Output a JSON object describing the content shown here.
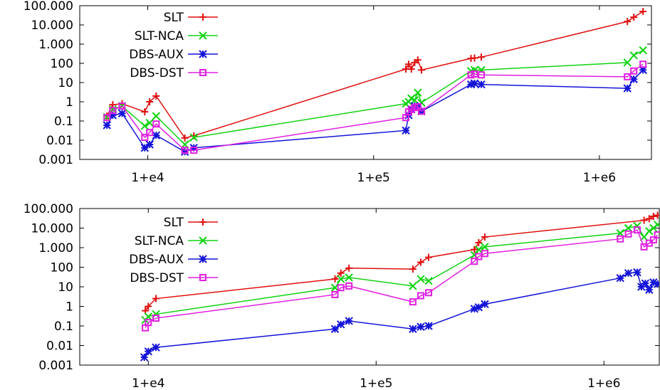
{
  "chart_data": [
    {
      "type": "line",
      "xscale": "log",
      "yscale": "log",
      "xlim": [
        5000,
        1700000
      ],
      "ylim": [
        0.001,
        100000
      ],
      "x_ticks": [
        {
          "value": 10000,
          "label": "1+e4"
        },
        {
          "value": 100000,
          "label": "1+e5"
        },
        {
          "value": 1000000,
          "label": "1+e6"
        }
      ],
      "y_ticks": [
        {
          "value": 100000,
          "label": "100.000"
        },
        {
          "value": 10000,
          "label": "10.000"
        },
        {
          "value": 1000,
          "label": "1.000"
        },
        {
          "value": 100,
          "label": "100"
        },
        {
          "value": 10,
          "label": "10"
        },
        {
          "value": 1,
          "label": "1"
        },
        {
          "value": 0.1,
          "label": "0.1"
        },
        {
          "value": 0.01,
          "label": "0.01"
        },
        {
          "value": 0.001,
          "label": "0.001"
        }
      ],
      "legend_position": "top-left",
      "grid": false,
      "series": [
        {
          "name": "SLT",
          "color": "#e01010",
          "marker": "plus",
          "x": [
            6600,
            7000,
            7700,
            9700,
            10200,
            10900,
            14600,
            16000,
            139000,
            143000,
            147000,
            152000,
            157000,
            163000,
            270000,
            280000,
            300000,
            1330000,
            1420000,
            1560000
          ],
          "y": [
            0.18,
            0.7,
            0.8,
            0.3,
            1.0,
            2.0,
            0.013,
            0.017,
            50,
            90,
            50,
            110,
            150,
            45,
            180,
            190,
            210,
            15000,
            25000,
            50000
          ]
        },
        {
          "name": "SLT-NCA",
          "color": "#12d312",
          "marker": "x",
          "x": [
            6600,
            7000,
            7700,
            9700,
            10200,
            10900,
            14600,
            16000,
            139000,
            143000,
            147000,
            152000,
            157000,
            163000,
            270000,
            280000,
            300000,
            1330000,
            1420000,
            1560000
          ],
          "y": [
            0.16,
            0.4,
            0.6,
            0.055,
            0.08,
            0.18,
            0.006,
            0.014,
            0.8,
            1.0,
            1.5,
            1.2,
            3.0,
            0.9,
            40,
            45,
            45,
            110,
            260,
            480
          ]
        },
        {
          "name": "DBS-AUX",
          "color": "#1414d8",
          "marker": "star",
          "x": [
            6600,
            7000,
            7700,
            9700,
            10200,
            10900,
            14600,
            16000,
            139000,
            143000,
            147000,
            152000,
            157000,
            163000,
            270000,
            280000,
            300000,
            1330000,
            1420000,
            1560000
          ],
          "y": [
            0.06,
            0.2,
            0.25,
            0.004,
            0.006,
            0.018,
            0.0025,
            0.004,
            0.032,
            0.2,
            0.4,
            0.6,
            0.55,
            0.32,
            8,
            9,
            8,
            5,
            15,
            45
          ]
        },
        {
          "name": "DBS-DST",
          "color": "#e020e0",
          "marker": "square",
          "x": [
            6600,
            7000,
            7700,
            9700,
            10200,
            10900,
            14600,
            16000,
            139000,
            143000,
            147000,
            152000,
            157000,
            163000,
            270000,
            280000,
            300000,
            1330000,
            1420000,
            1560000
          ],
          "y": [
            0.15,
            0.35,
            0.6,
            0.014,
            0.025,
            0.07,
            0.003,
            0.003,
            0.15,
            0.3,
            0.4,
            0.5,
            0.55,
            0.32,
            25,
            28,
            25,
            20,
            40,
            90
          ]
        }
      ]
    },
    {
      "type": "line",
      "xscale": "log",
      "yscale": "log",
      "xlim": [
        5000,
        1750000
      ],
      "ylim": [
        0.001,
        100000
      ],
      "x_ticks": [
        {
          "value": 10000,
          "label": "1+e4"
        },
        {
          "value": 100000,
          "label": "1+e5"
        },
        {
          "value": 1000000,
          "label": "1+e6"
        }
      ],
      "y_ticks": [
        {
          "value": 100000,
          "label": "100.000"
        },
        {
          "value": 10000,
          "label": "10.000"
        },
        {
          "value": 1000,
          "label": "1.000"
        },
        {
          "value": 100,
          "label": "100"
        },
        {
          "value": 10,
          "label": "10"
        },
        {
          "value": 1,
          "label": "1"
        },
        {
          "value": 0.1,
          "label": "0.1"
        },
        {
          "value": 0.01,
          "label": "0.01"
        },
        {
          "value": 0.001,
          "label": "0.001"
        }
      ],
      "legend_position": "top-left",
      "grid": false,
      "series": [
        {
          "name": "SLT",
          "color": "#e01010",
          "marker": "plus",
          "x": [
            9700,
            10000,
            10800,
            66000,
            70000,
            76000,
            145000,
            157000,
            170000,
            270000,
            282000,
            300000,
            1500000,
            1580000,
            1650000,
            1720000
          ],
          "y": [
            0.6,
            1.0,
            2.5,
            25,
            50,
            90,
            80,
            180,
            320,
            800,
            1800,
            3500,
            25000,
            30000,
            40000,
            45000
          ]
        },
        {
          "name": "SLT-NCA",
          "color": "#12d312",
          "marker": "x",
          "x": [
            9700,
            10000,
            10800,
            66000,
            70000,
            76000,
            145000,
            157000,
            170000,
            270000,
            282000,
            300000,
            1180000,
            1280000,
            1400000,
            1500000,
            1580000,
            1650000,
            1720000
          ],
          "y": [
            0.2,
            0.3,
            0.4,
            9,
            25,
            30,
            11,
            25,
            20,
            420,
            800,
            1100,
            5500,
            10000,
            13000,
            3500,
            7000,
            10000,
            15000
          ]
        },
        {
          "name": "DBS-AUX",
          "color": "#1414d8",
          "marker": "star",
          "x": [
            9600,
            10000,
            10800,
            66000,
            70000,
            76000,
            145000,
            157000,
            170000,
            270000,
            282000,
            300000,
            1180000,
            1280000,
            1400000,
            1460000,
            1520000,
            1580000,
            1650000,
            1720000
          ],
          "y": [
            0.0025,
            0.005,
            0.008,
            0.07,
            0.12,
            0.18,
            0.07,
            0.09,
            0.1,
            0.75,
            0.9,
            1.3,
            28,
            50,
            55,
            10,
            15,
            7,
            17,
            14
          ]
        },
        {
          "name": "DBS-DST",
          "color": "#e020e0",
          "marker": "square",
          "x": [
            9700,
            10000,
            10800,
            66000,
            70000,
            76000,
            145000,
            157000,
            170000,
            270000,
            282000,
            300000,
            1180000,
            1280000,
            1400000,
            1500000,
            1580000,
            1650000,
            1720000
          ],
          "y": [
            0.08,
            0.15,
            0.25,
            4,
            9,
            11,
            1.7,
            3.5,
            5,
            200,
            350,
            500,
            2800,
            5000,
            8000,
            1100,
            1700,
            2500,
            4500
          ]
        }
      ]
    }
  ]
}
